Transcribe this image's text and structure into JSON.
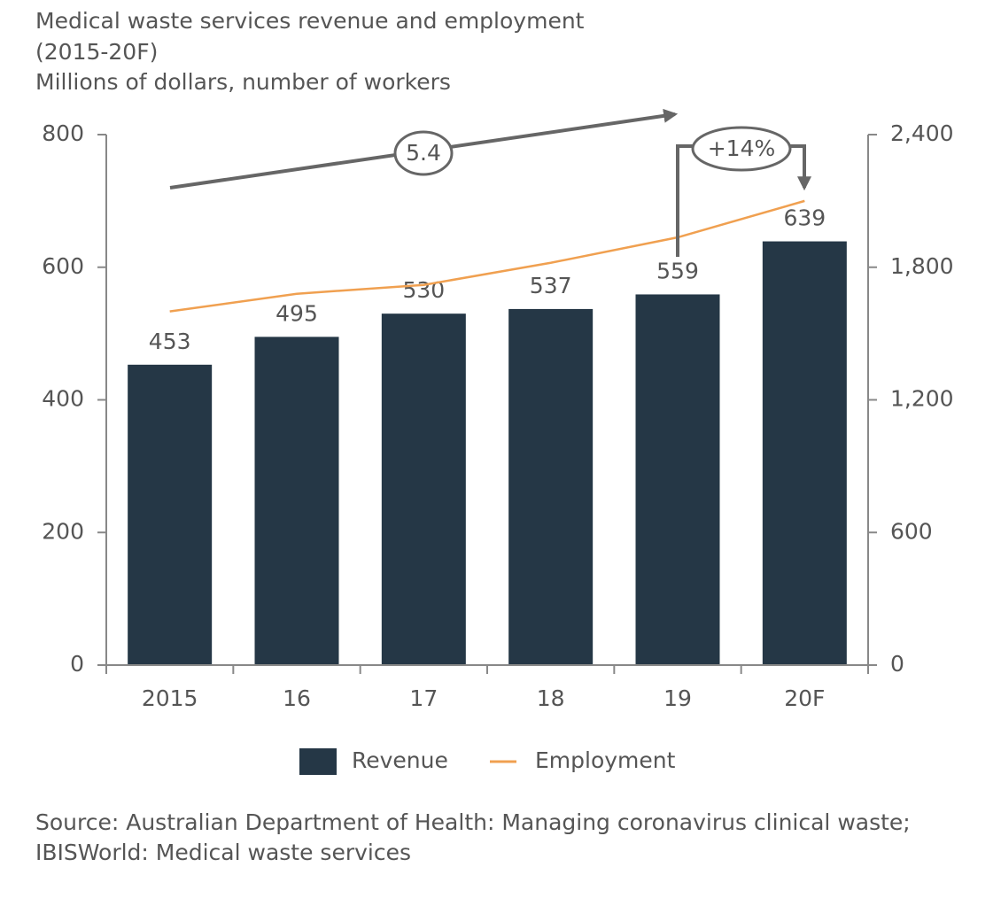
{
  "chart_data": {
    "type": "bar_line",
    "title": "Medical waste services revenue and employment",
    "subtitle": "(2015-20F)",
    "units": "Millions of dollars, number of workers",
    "categories": [
      "2015",
      "16",
      "17",
      "18",
      "19",
      "20F"
    ],
    "series": [
      {
        "name": "Revenue",
        "type": "bar",
        "color": "#253746",
        "values": [
          453,
          495,
          530,
          537,
          559,
          639
        ]
      },
      {
        "name": "Employment",
        "type": "line",
        "axis": "y2",
        "color": "#f0a050",
        "values": [
          1600,
          1680,
          1720,
          1820,
          1935,
          2100
        ]
      }
    ],
    "ylim": [
      0,
      800
    ],
    "yticks": [
      0,
      200,
      400,
      600,
      800
    ],
    "y2lim": [
      0,
      2400
    ],
    "y2ticks": [
      0,
      600,
      {
        "value": 1200,
        "label": "1,200"
      },
      {
        "value": 1800,
        "label": "1,800"
      },
      {
        "value": 2400,
        "label": "2,400"
      }
    ],
    "annotations": [
      "5.4",
      "+14%"
    ],
    "source": [
      "Source: Australian Department of Health: Managing coronavirus clinical waste;",
      "IBISWorld: Medical waste services"
    ]
  }
}
